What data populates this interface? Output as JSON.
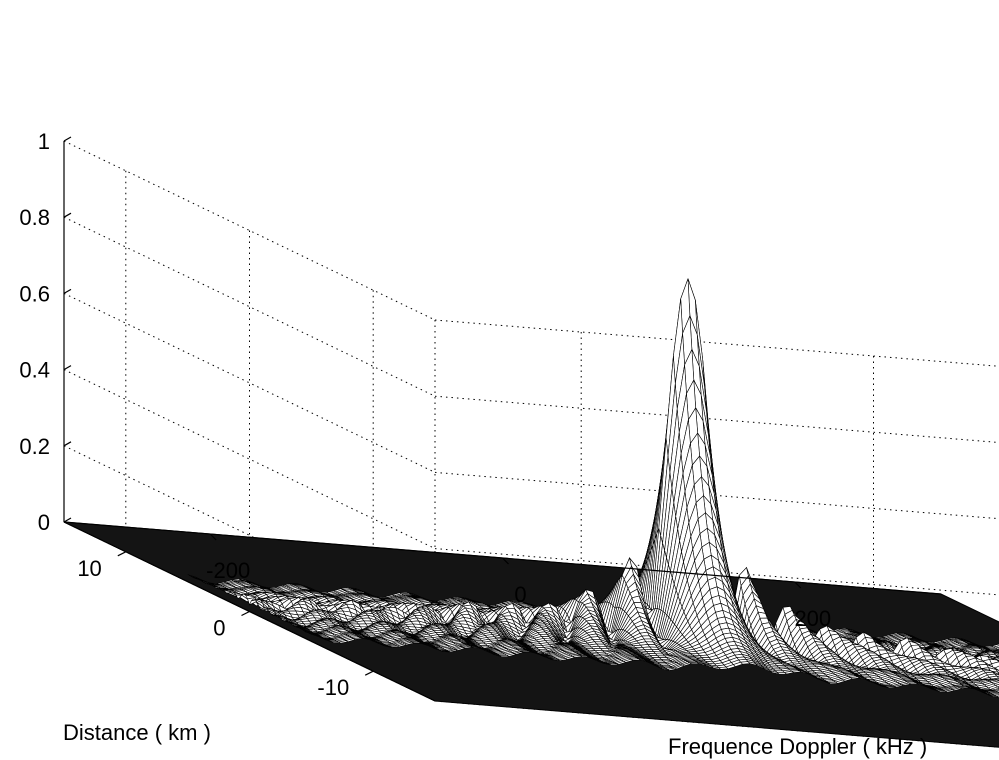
{
  "chart_data": {
    "type": "surface",
    "title": "",
    "xlabel": "Frequence Doppler ( kHz )",
    "ylabel": "Distance ( km )",
    "zlabel": "",
    "xlim": [
      -300,
      300
    ],
    "ylim": [
      -15,
      15
    ],
    "zlim": [
      0,
      1
    ],
    "x_ticks": [
      -200,
      0,
      200
    ],
    "y_ticks": [
      -10,
      0,
      10
    ],
    "z_ticks": [
      0,
      0.2,
      0.4,
      0.6,
      0.8,
      1
    ],
    "x_tick_labels": [
      "-200",
      "0",
      "200"
    ],
    "y_tick_labels": [
      "-10",
      "0",
      "10"
    ],
    "z_tick_labels": [
      "0",
      "0.2",
      "0.4",
      "0.6",
      "0.8",
      "1"
    ],
    "peak": {
      "x": 0,
      "y": 0,
      "z": 0.95
    },
    "support_y": [
      -5,
      5
    ],
    "grid": true,
    "colormap": "white faces, black mesh"
  }
}
